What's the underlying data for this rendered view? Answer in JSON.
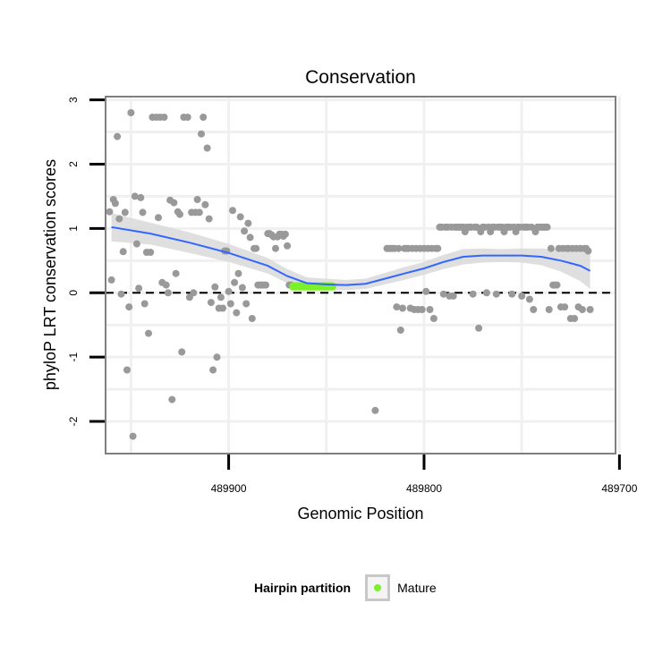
{
  "colors": {
    "background": "#ffffff",
    "panel_border": "#7f7f7f",
    "grid": "#f0f0f0",
    "points": "#999999",
    "mature": "#7cf02a",
    "smooth_line": "#3366ff",
    "ribbon": "#d9d9d9",
    "zero_line": "#000000"
  },
  "chart_data": {
    "type": "scatter",
    "title": "Conservation",
    "xlabel": "Genomic Position",
    "ylabel": "phyloP LRT conservation scores",
    "x_reversed": true,
    "xlim": [
      489963,
      489702
    ],
    "ylim": [
      -2.5,
      3.05
    ],
    "x_ticks": [
      489900,
      489800,
      489700
    ],
    "x_tick_labels": [
      "489900",
      "489800",
      "489700"
    ],
    "y_ticks": [
      -2,
      -1,
      0,
      1,
      2,
      3
    ],
    "y_tick_labels": [
      "-2",
      "-1",
      "0",
      "1",
      "2",
      "3"
    ],
    "hline": 0,
    "series": [
      {
        "name": "Hairpin",
        "color": "#999999",
        "points": [
          [
            489961,
            1.26
          ],
          [
            489960,
            0.2
          ],
          [
            489959,
            1.45
          ],
          [
            489958,
            1.39
          ],
          [
            489957,
            2.43
          ],
          [
            489956,
            1.15
          ],
          [
            489955,
            -0.02
          ],
          [
            489954,
            0.64
          ],
          [
            489953,
            1.25
          ],
          [
            489952,
            -1.2
          ],
          [
            489951,
            -0.22
          ],
          [
            489950,
            2.8
          ],
          [
            489949,
            -2.23
          ],
          [
            489948,
            1.5
          ],
          [
            489947,
            0.76
          ],
          [
            489946,
            0.07
          ],
          [
            489945,
            1.48
          ],
          [
            489944,
            1.25
          ],
          [
            489943,
            -0.17
          ],
          [
            489942,
            0.63
          ],
          [
            489941,
            -0.63
          ],
          [
            489940,
            0.63
          ],
          [
            489939,
            2.73
          ],
          [
            489937,
            2.73
          ],
          [
            489936,
            1.17
          ],
          [
            489935,
            2.73
          ],
          [
            489934,
            0.16
          ],
          [
            489933,
            2.73
          ],
          [
            489932,
            0.12
          ],
          [
            489931,
            0.0
          ],
          [
            489930,
            1.44
          ],
          [
            489929,
            -1.66
          ],
          [
            489928,
            1.4
          ],
          [
            489927,
            0.3
          ],
          [
            489926,
            1.26
          ],
          [
            489925,
            1.22
          ],
          [
            489924,
            -0.92
          ],
          [
            489923,
            2.73
          ],
          [
            489921,
            2.73
          ],
          [
            489920,
            -0.07
          ],
          [
            489919,
            1.25
          ],
          [
            489918,
            0.0
          ],
          [
            489917,
            1.25
          ],
          [
            489916,
            1.45
          ],
          [
            489915,
            1.25
          ],
          [
            489914,
            2.47
          ],
          [
            489913,
            2.73
          ],
          [
            489912,
            1.37
          ],
          [
            489911,
            2.25
          ],
          [
            489910,
            1.15
          ],
          [
            489909,
            -0.15
          ],
          [
            489908,
            -1.2
          ],
          [
            489907,
            0.09
          ],
          [
            489906,
            -1.0
          ],
          [
            489905,
            -0.24
          ],
          [
            489904,
            -0.07
          ],
          [
            489903,
            -0.24
          ],
          [
            489902,
            0.65
          ],
          [
            489901,
            0.65
          ],
          [
            489900,
            0.02
          ],
          [
            489899,
            -0.17
          ],
          [
            489898,
            1.28
          ],
          [
            489897,
            0.16
          ],
          [
            489896,
            -0.31
          ],
          [
            489895,
            0.3
          ],
          [
            489894,
            1.18
          ],
          [
            489893,
            0.08
          ],
          [
            489892,
            0.96
          ],
          [
            489891,
            -0.17
          ],
          [
            489890,
            1.08
          ],
          [
            489889,
            0.86
          ],
          [
            489888,
            -0.4
          ],
          [
            489887,
            0.69
          ],
          [
            489886,
            0.69
          ],
          [
            489885,
            0.12
          ],
          [
            489884,
            0.12
          ],
          [
            489883,
            0.12
          ],
          [
            489882,
            0.12
          ],
          [
            489881,
            0.12
          ],
          [
            489880,
            0.92
          ],
          [
            489879,
            0.92
          ],
          [
            489878,
            0.9
          ],
          [
            489877,
            0.87
          ],
          [
            489876,
            0.69
          ],
          [
            489875,
            0.87
          ],
          [
            489874,
            0.91
          ],
          [
            489873,
            0.91
          ],
          [
            489872,
            0.88
          ],
          [
            489871,
            0.91
          ],
          [
            489870,
            0.73
          ],
          [
            489869,
            0.12
          ],
          [
            489868,
            0.12
          ],
          [
            489825,
            -1.83
          ],
          [
            489819,
            0.69
          ],
          [
            489818,
            0.69
          ],
          [
            489817,
            0.69
          ],
          [
            489816,
            0.69
          ],
          [
            489815,
            0.69
          ],
          [
            489814,
            -0.22
          ],
          [
            489813,
            0.69
          ],
          [
            489812,
            -0.58
          ],
          [
            489811,
            -0.24
          ],
          [
            489810,
            0.69
          ],
          [
            489809,
            0.69
          ],
          [
            489808,
            0.69
          ],
          [
            489807,
            -0.24
          ],
          [
            489806,
            0.69
          ],
          [
            489805,
            -0.26
          ],
          [
            489804,
            0.69
          ],
          [
            489803,
            -0.26
          ],
          [
            489802,
            0.69
          ],
          [
            489801,
            -0.26
          ],
          [
            489800,
            0.69
          ],
          [
            489799,
            0.02
          ],
          [
            489798,
            0.69
          ],
          [
            489797,
            -0.26
          ],
          [
            489796,
            0.69
          ],
          [
            489795,
            -0.4
          ],
          [
            489794,
            0.69
          ],
          [
            489793,
            0.69
          ],
          [
            489792,
            1.02
          ],
          [
            489791,
            1.02
          ],
          [
            489790,
            -0.02
          ],
          [
            489789,
            1.02
          ],
          [
            489788,
            1.02
          ],
          [
            489787,
            -0.05
          ],
          [
            489786,
            1.02
          ],
          [
            489785,
            -0.05
          ],
          [
            489784,
            1.02
          ],
          [
            489783,
            1.02
          ],
          [
            489782,
            1.02
          ],
          [
            489781,
            1.02
          ],
          [
            489780,
            1.02
          ],
          [
            489779,
            0.95
          ],
          [
            489778,
            1.02
          ],
          [
            489777,
            1.02
          ],
          [
            489776,
            1.02
          ],
          [
            489775,
            -0.02
          ],
          [
            489774,
            1.02
          ],
          [
            489773,
            1.02
          ],
          [
            489772,
            -0.55
          ],
          [
            489771,
            0.95
          ],
          [
            489770,
            1.02
          ],
          [
            489769,
            1.02
          ],
          [
            489768,
            0.0
          ],
          [
            489767,
            1.02
          ],
          [
            489766,
            0.95
          ],
          [
            489765,
            1.02
          ],
          [
            489764,
            1.02
          ],
          [
            489763,
            -0.02
          ],
          [
            489762,
            1.02
          ],
          [
            489761,
            1.02
          ],
          [
            489760,
            1.02
          ],
          [
            489759,
            0.95
          ],
          [
            489758,
            1.02
          ],
          [
            489757,
            1.02
          ],
          [
            489756,
            1.02
          ],
          [
            489755,
            -0.02
          ],
          [
            489754,
            1.02
          ],
          [
            489753,
            0.95
          ],
          [
            489752,
            1.02
          ],
          [
            489751,
            1.02
          ],
          [
            489750,
            -0.05
          ],
          [
            489749,
            1.02
          ],
          [
            489748,
            1.02
          ],
          [
            489747,
            1.02
          ],
          [
            489746,
            -0.1
          ],
          [
            489745,
            1.02
          ],
          [
            489744,
            -0.26
          ],
          [
            489743,
            0.95
          ],
          [
            489742,
            1.02
          ],
          [
            489741,
            1.02
          ],
          [
            489740,
            1.02
          ],
          [
            489739,
            1.02
          ],
          [
            489738,
            1.02
          ],
          [
            489737,
            1.02
          ],
          [
            489736,
            -0.26
          ],
          [
            489735,
            0.69
          ],
          [
            489734,
            0.12
          ],
          [
            489733,
            0.12
          ],
          [
            489732,
            0.12
          ],
          [
            489731,
            0.69
          ],
          [
            489730,
            -0.22
          ],
          [
            489729,
            0.69
          ],
          [
            489728,
            -0.22
          ],
          [
            489727,
            0.69
          ],
          [
            489726,
            0.69
          ],
          [
            489725,
            -0.4
          ],
          [
            489724,
            0.69
          ],
          [
            489723,
            -0.4
          ],
          [
            489722,
            0.69
          ],
          [
            489721,
            -0.22
          ],
          [
            489720,
            0.69
          ],
          [
            489719,
            -0.26
          ],
          [
            489718,
            0.69
          ],
          [
            489717,
            0.69
          ],
          [
            489716,
            0.65
          ],
          [
            489715,
            -0.26
          ]
        ]
      },
      {
        "name": "Mature",
        "color": "#7cf02a",
        "points": [
          [
            489867,
            0.1
          ],
          [
            489866,
            0.1
          ],
          [
            489865,
            0.1
          ],
          [
            489864,
            0.1
          ],
          [
            489863,
            0.1
          ],
          [
            489862,
            0.1
          ],
          [
            489861,
            0.1
          ],
          [
            489860,
            0.1
          ],
          [
            489859,
            0.1
          ],
          [
            489858,
            0.1
          ],
          [
            489857,
            0.1
          ],
          [
            489856,
            0.1
          ],
          [
            489855,
            0.1
          ],
          [
            489854,
            0.1
          ],
          [
            489853,
            0.1
          ],
          [
            489852,
            0.1
          ],
          [
            489851,
            0.1
          ],
          [
            489850,
            0.1
          ],
          [
            489849,
            0.1
          ],
          [
            489848,
            0.1
          ],
          [
            489847,
            0.1
          ]
        ]
      }
    ],
    "smooth": {
      "x": [
        489960,
        489940,
        489920,
        489900,
        489880,
        489870,
        489860,
        489850,
        489840,
        489830,
        489820,
        489810,
        489800,
        489790,
        489780,
        489770,
        489760,
        489750,
        489740,
        489730,
        489720,
        489715
      ],
      "y": [
        1.02,
        0.92,
        0.78,
        0.62,
        0.42,
        0.26,
        0.15,
        0.13,
        0.12,
        0.14,
        0.22,
        0.3,
        0.38,
        0.48,
        0.56,
        0.58,
        0.58,
        0.58,
        0.56,
        0.5,
        0.42,
        0.34
      ],
      "lower": [
        0.8,
        0.75,
        0.62,
        0.48,
        0.3,
        0.15,
        0.06,
        0.04,
        0.04,
        0.06,
        0.13,
        0.2,
        0.28,
        0.37,
        0.44,
        0.47,
        0.48,
        0.47,
        0.43,
        0.33,
        0.18,
        0.06
      ],
      "upper": [
        1.24,
        1.09,
        0.94,
        0.76,
        0.54,
        0.37,
        0.24,
        0.22,
        0.2,
        0.22,
        0.31,
        0.4,
        0.48,
        0.59,
        0.68,
        0.69,
        0.68,
        0.69,
        0.69,
        0.67,
        0.66,
        0.62
      ]
    }
  },
  "legend": {
    "title": "Hairpin partition",
    "label": "Mature"
  }
}
